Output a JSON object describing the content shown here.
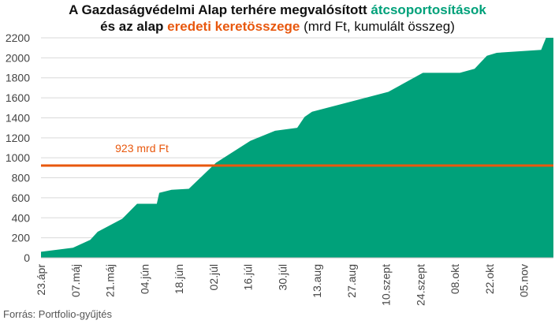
{
  "title": {
    "line1_prefix": "A Gazdaságvédelmi Alap terhére megvalósított ",
    "line1_highlight": "átcsoportosítások",
    "line2_prefix": "és az alap ",
    "line2_highlight": "eredeti keretösszege",
    "line2_suffix": " (mrd Ft, kumulált összeg)"
  },
  "source": "Forrás: Portfolio-gyűjtés",
  "colors": {
    "area": "#00a17a",
    "line": "#e8580e",
    "grid": "#d9d9d9",
    "axis_text": "#444444"
  },
  "chart_data": {
    "type": "area",
    "ylim": [
      0,
      2200
    ],
    "yticks": [
      0,
      200,
      400,
      600,
      800,
      1000,
      1200,
      1400,
      1600,
      1800,
      2000,
      2200
    ],
    "xticks": [
      "23.ápr",
      "07.máj",
      "21.máj",
      "04.jún",
      "18.jún",
      "02.júl",
      "16.júl",
      "30.júl",
      "13.aug",
      "27.aug",
      "10.szept",
      "24.szept",
      "08.okt",
      "22.okt",
      "05.nov"
    ],
    "x_start": "2020-04-23",
    "x_end": "2020-11-17",
    "series": [
      {
        "points": [
          [
            "2020-04-23",
            60
          ],
          [
            "2020-05-06",
            100
          ],
          [
            "2020-05-13",
            180
          ],
          [
            "2020-05-16",
            260
          ],
          [
            "2020-05-26",
            390
          ],
          [
            "2020-06-01",
            540
          ],
          [
            "2020-06-09",
            540
          ],
          [
            "2020-06-10",
            650
          ],
          [
            "2020-06-15",
            680
          ],
          [
            "2020-06-22",
            690
          ],
          [
            "2020-07-03",
            950
          ],
          [
            "2020-07-17",
            1170
          ],
          [
            "2020-07-27",
            1270
          ],
          [
            "2020-08-05",
            1300
          ],
          [
            "2020-08-08",
            1410
          ],
          [
            "2020-08-11",
            1460
          ],
          [
            "2020-09-11",
            1660
          ],
          [
            "2020-09-25",
            1850
          ],
          [
            "2020-10-10",
            1850
          ],
          [
            "2020-10-16",
            1890
          ],
          [
            "2020-10-21",
            2020
          ],
          [
            "2020-10-25",
            2050
          ],
          [
            "2020-11-12",
            2080
          ],
          [
            "2020-11-14",
            2200
          ],
          [
            "2020-11-17",
            2200
          ]
        ]
      }
    ],
    "reference_line": {
      "value": 923,
      "label": "923 mrd Ft"
    }
  }
}
